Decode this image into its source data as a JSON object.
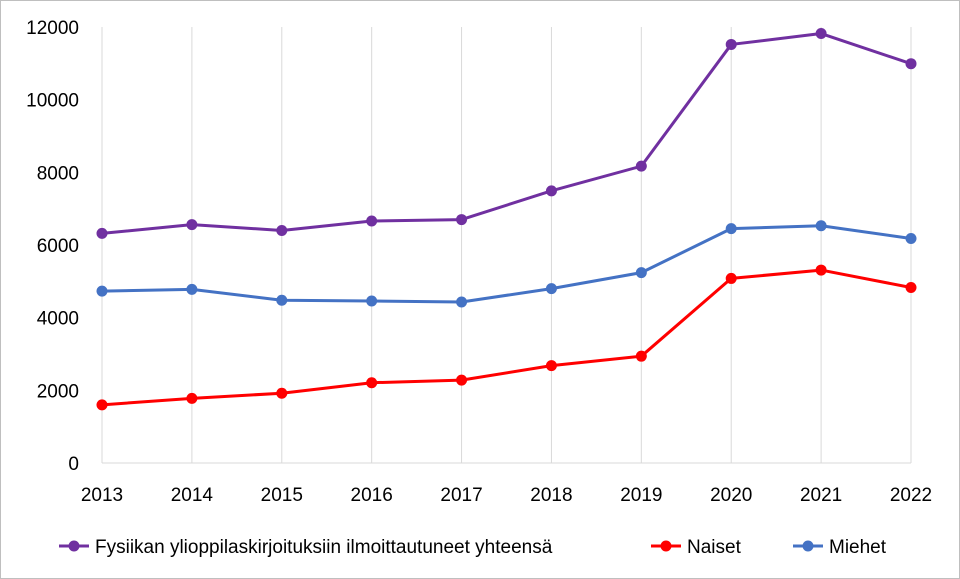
{
  "chart_data": {
    "type": "line",
    "title": "",
    "xlabel": "",
    "ylabel": "",
    "x": [
      "2013",
      "2014",
      "2015",
      "2016",
      "2017",
      "2018",
      "2019",
      "2020",
      "2021",
      "2022"
    ],
    "ylim": [
      0,
      12000
    ],
    "yticks": [
      0,
      2000,
      4000,
      6000,
      8000,
      10000,
      12000
    ],
    "grid": "vertical",
    "legend_position": "bottom",
    "series": [
      {
        "name": "Fysiikan ylioppilaskirjoituksiin ilmoittautuneet yhteensä",
        "color": "#7030a0",
        "values": [
          6320,
          6560,
          6400,
          6660,
          6700,
          7490,
          8170,
          11520,
          11820,
          10990
        ]
      },
      {
        "name": "Naiset",
        "color": "#ff0000",
        "values": [
          1600,
          1780,
          1920,
          2210,
          2280,
          2680,
          2940,
          5080,
          5310,
          4830
        ]
      },
      {
        "name": "Miehet",
        "color": "#4472c4",
        "values": [
          4730,
          4780,
          4480,
          4460,
          4430,
          4800,
          5240,
          6450,
          6530,
          6180
        ]
      }
    ]
  }
}
